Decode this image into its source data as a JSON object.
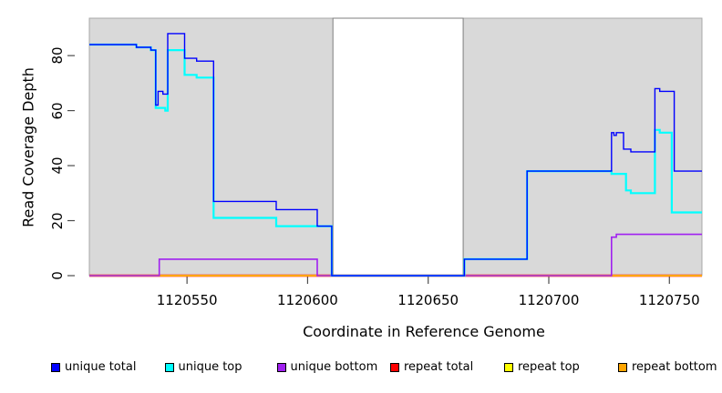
{
  "chart_data": {
    "type": "line",
    "step": true,
    "title": "",
    "xlabel": "Coordinate in Reference Genome",
    "ylabel": "Read Coverage Depth",
    "x_ticks": [
      1120550,
      1120600,
      1120650,
      1120700,
      1120750
    ],
    "y_ticks": [
      0,
      20,
      40,
      60,
      80
    ],
    "x_range": [
      1120509.5,
      1120763.5
    ],
    "y_range": [
      0,
      93.6
    ],
    "grid": false,
    "legend_position": "bottom",
    "band_color": "#d9d9d9",
    "gap_region": [
      1120610.5,
      1120664.5
    ],
    "series": [
      {
        "name": "unique total",
        "color": "#0000ff",
        "points": [
          [
            1120509.5,
            84
          ],
          [
            1120529,
            83
          ],
          [
            1120535,
            82
          ],
          [
            1120537,
            62
          ],
          [
            1120538,
            67
          ],
          [
            1120540,
            66
          ],
          [
            1120542,
            88
          ],
          [
            1120549,
            79
          ],
          [
            1120554,
            78
          ],
          [
            1120561,
            27
          ],
          [
            1120587,
            24
          ],
          [
            1120604,
            18
          ],
          [
            1120610,
            0
          ],
          [
            1120665,
            6
          ],
          [
            1120691,
            38
          ],
          [
            1120726,
            52
          ],
          [
            1120727,
            51
          ],
          [
            1120728,
            52
          ],
          [
            1120731,
            46
          ],
          [
            1120734,
            45
          ],
          [
            1120744,
            68
          ],
          [
            1120746,
            67
          ],
          [
            1120752,
            38
          ],
          [
            1120763.5,
            38
          ]
        ]
      },
      {
        "name": "unique top",
        "color": "#00ffff",
        "points": [
          [
            1120509.5,
            84
          ],
          [
            1120529,
            83
          ],
          [
            1120535,
            82
          ],
          [
            1120537,
            61
          ],
          [
            1120541,
            60
          ],
          [
            1120542,
            82
          ],
          [
            1120549,
            73
          ],
          [
            1120554,
            72
          ],
          [
            1120561,
            21
          ],
          [
            1120587,
            18
          ],
          [
            1120610,
            0
          ],
          [
            1120665,
            6
          ],
          [
            1120691,
            38
          ],
          [
            1120726,
            37
          ],
          [
            1120732,
            31
          ],
          [
            1120734,
            30
          ],
          [
            1120744,
            53
          ],
          [
            1120746,
            52
          ],
          [
            1120751,
            23
          ],
          [
            1120763.5,
            23
          ]
        ]
      },
      {
        "name": "unique bottom",
        "color": "#a020f0",
        "points": [
          [
            1120509.5,
            0
          ],
          [
            1120538.5,
            6
          ],
          [
            1120604,
            0
          ],
          [
            1120726,
            14
          ],
          [
            1120728,
            15
          ],
          [
            1120763.5,
            15
          ]
        ]
      },
      {
        "name": "repeat total",
        "color": "#ff0000",
        "points": [
          [
            1120509.5,
            0
          ],
          [
            1120763.5,
            0
          ]
        ]
      },
      {
        "name": "repeat top",
        "color": "#ffff00",
        "points": [
          [
            1120509.5,
            0
          ],
          [
            1120763.5,
            0
          ]
        ]
      },
      {
        "name": "repeat bottom",
        "color": "#ffa500",
        "points": [
          [
            1120509.5,
            0
          ],
          [
            1120763.5,
            0
          ]
        ]
      }
    ]
  }
}
